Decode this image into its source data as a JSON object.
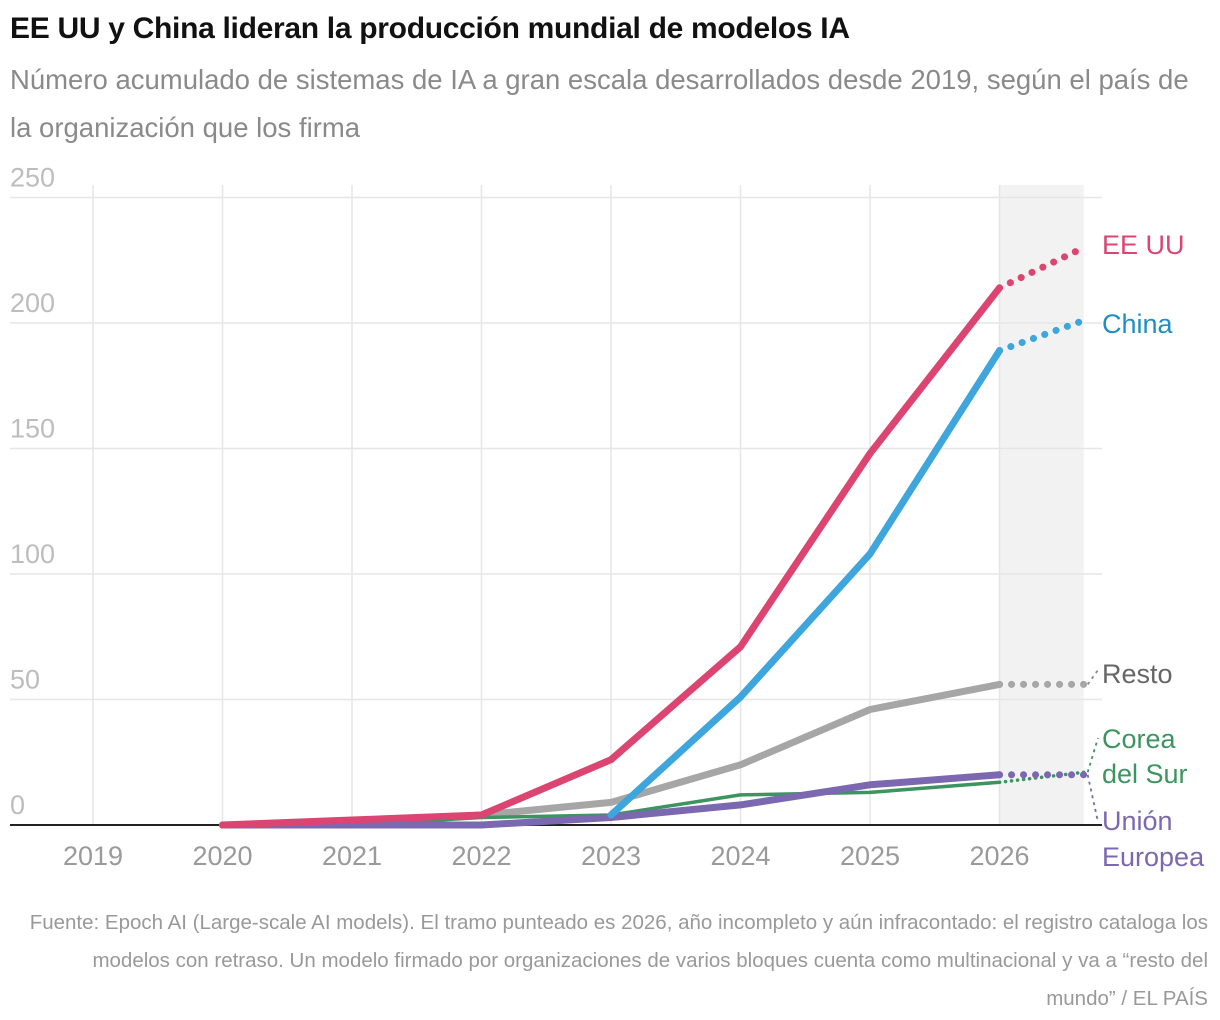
{
  "title": "EE UU y China lideran la producción mundial de modelos IA",
  "subtitle": "Número acumulado de sistemas de IA a gran escala desarrollados desde 2019, según el país de la organización que los firma",
  "source": "Fuente: Epoch AI (Large-scale AI models). El tramo punteado es 2026, año incompleto y aún infracontado: el registro cataloga los modelos con retraso. Un modelo firmado por organizaciones de varios bloques cuenta como multinacional y va a “resto del mundo” / EL PAÍS",
  "chart_data": {
    "type": "line",
    "title": "EE UU y China lideran la producción mundial de modelos IA",
    "subtitle": "Número acumulado de sistemas de IA a gran escala desarrollados desde 2019, según el país de la organización que los firma",
    "x_ticks": [
      "2019",
      "2020",
      "2021",
      "2022",
      "2023",
      "2024",
      "2025",
      "2026"
    ],
    "y_ticks": [
      "0",
      "50",
      "100",
      "150",
      "200",
      "250"
    ],
    "xlim": [
      2019,
      2026.65
    ],
    "ylim": [
      0,
      255
    ],
    "grid": true,
    "shaded_region": [
      2026,
      2026.65
    ],
    "series": [
      {
        "name": "Resto",
        "color": "#a6a6a6",
        "points": [
          [
            2020,
            0
          ],
          [
            2021,
            1
          ],
          [
            2022,
            4
          ],
          [
            2023,
            9
          ],
          [
            2024,
            24
          ],
          [
            2025,
            46
          ],
          [
            2026,
            56
          ]
        ],
        "projection": [
          [
            2026,
            56
          ],
          [
            2026.65,
            56
          ]
        ]
      },
      {
        "name": "Corea del Sur",
        "label_lines": [
          "Corea",
          "del Sur"
        ],
        "color": "#3c9460",
        "points": [
          [
            2020,
            0
          ],
          [
            2021,
            0
          ],
          [
            2022,
            3
          ],
          [
            2023,
            4
          ],
          [
            2024,
            12
          ],
          [
            2025,
            13
          ],
          [
            2026,
            17
          ]
        ],
        "projection": [
          [
            2026,
            17
          ],
          [
            2026.65,
            21
          ]
        ]
      },
      {
        "name": "Unión Europea",
        "label_lines": [
          "Unión",
          "Europea"
        ],
        "color": "#7b68b0",
        "points": [
          [
            2020,
            0
          ],
          [
            2021,
            0
          ],
          [
            2022,
            0
          ],
          [
            2023,
            3
          ],
          [
            2024,
            8
          ],
          [
            2025,
            16
          ],
          [
            2026,
            20
          ]
        ],
        "projection": [
          [
            2026,
            20
          ],
          [
            2026.65,
            20
          ]
        ]
      },
      {
        "name": "China",
        "color": "#3ea6dd",
        "points": [
          [
            2023,
            4
          ],
          [
            2024,
            51
          ],
          [
            2025,
            108
          ],
          [
            2026,
            189
          ]
        ],
        "projection": [
          [
            2026,
            189
          ],
          [
            2026.65,
            201
          ]
        ]
      },
      {
        "name": "EE UU",
        "color": "#dc4571",
        "points": [
          [
            2020,
            0
          ],
          [
            2021,
            2
          ],
          [
            2022,
            4
          ],
          [
            2023,
            26
          ],
          [
            2024,
            71
          ],
          [
            2025,
            148
          ],
          [
            2026,
            214
          ]
        ],
        "projection": [
          [
            2026,
            214
          ],
          [
            2026.65,
            230
          ]
        ]
      }
    ]
  }
}
